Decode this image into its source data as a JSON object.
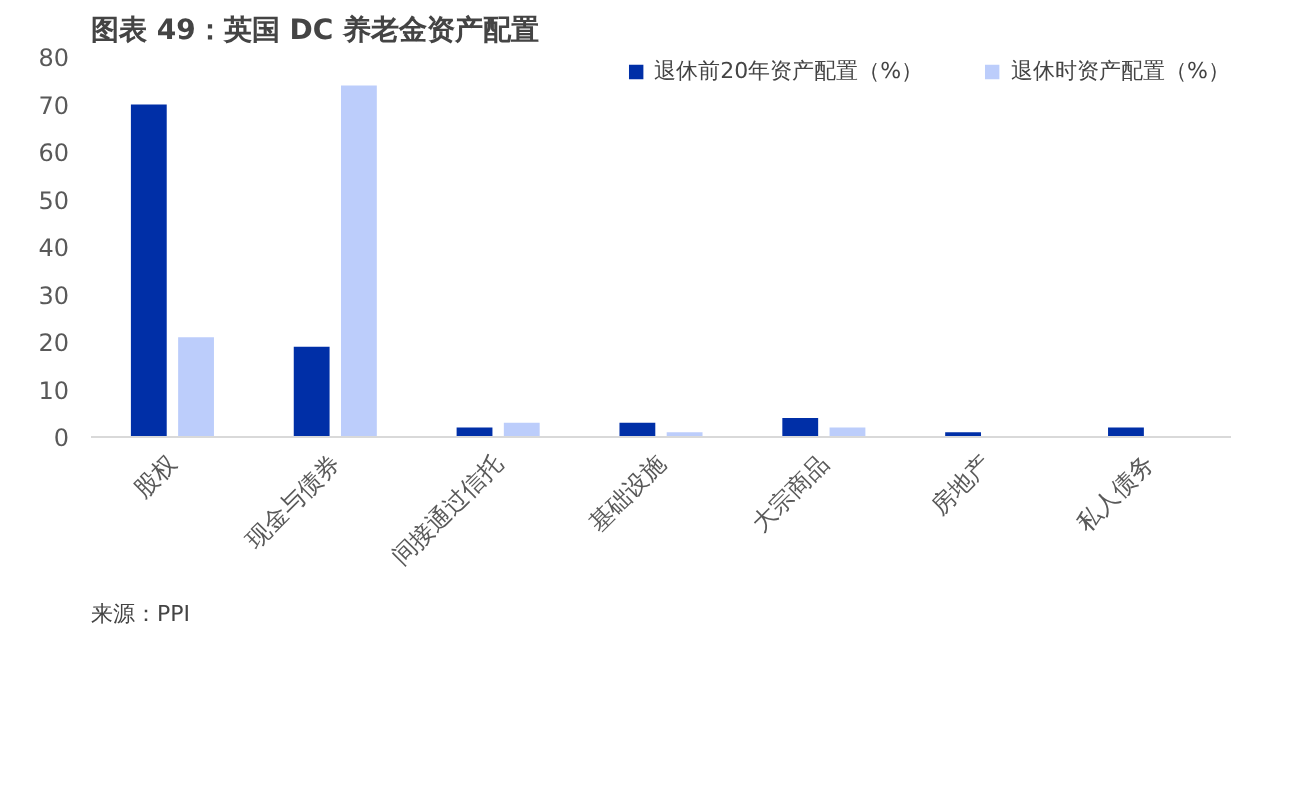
{
  "chart_data": {
    "type": "bar",
    "title": "图表 49：英国 DC 养老金资产配置",
    "categories": [
      "股权",
      "现金与债券",
      "间接通过信托",
      "基础设施",
      "大宗商品",
      "房地产",
      "私人债务"
    ],
    "series": [
      {
        "name": "退休前20年资产配置（%）",
        "color": "#002fa7",
        "values": [
          70,
          19,
          2,
          3,
          4,
          1,
          2
        ]
      },
      {
        "name": "退休时资产配置（%）",
        "color": "#bccdfb",
        "values": [
          21,
          74,
          3,
          1,
          2,
          0,
          0
        ]
      }
    ],
    "ylim": [
      0,
      80
    ],
    "yticks": [
      0,
      10,
      20,
      30,
      40,
      50,
      60,
      70,
      80
    ],
    "grid": false,
    "legend": "top right",
    "annotations": [
      "来源：PPI"
    ]
  }
}
